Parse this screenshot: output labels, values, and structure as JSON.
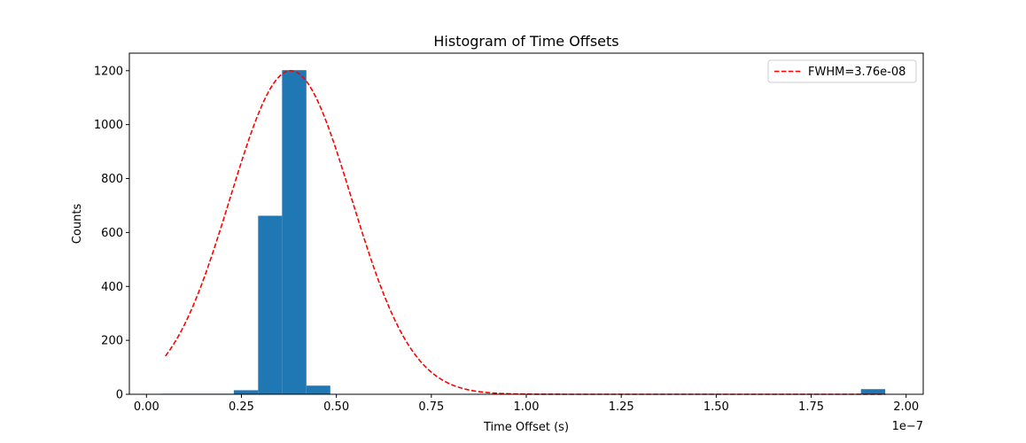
{
  "chart_data": {
    "type": "bar",
    "title": "Histogram of Time Offsets",
    "xlabel": "Time Offset (s)",
    "ylabel": "Counts",
    "x_scale_label": "1e−7",
    "xlim": [
      -0.045,
      2.045
    ],
    "ylim": [
      0,
      1265
    ],
    "x_ticks": [
      0.0,
      0.25,
      0.5,
      0.75,
      1.0,
      1.25,
      1.5,
      1.75,
      2.0
    ],
    "x_tick_labels": [
      "0.00",
      "0.25",
      "0.50",
      "0.75",
      "1.00",
      "1.25",
      "1.50",
      "1.75",
      "2.00"
    ],
    "y_ticks": [
      0,
      200,
      400,
      600,
      800,
      1000,
      1200
    ],
    "y_tick_labels": [
      "0",
      "200",
      "400",
      "600",
      "800",
      "1000",
      "1200"
    ],
    "bin_edges": [
      0.04,
      0.103,
      0.167,
      0.23,
      0.294,
      0.357,
      0.421,
      0.484,
      0.548,
      0.611,
      0.675,
      0.738,
      0.802,
      0.865,
      0.929,
      0.992,
      1.056,
      1.119,
      1.183,
      1.246,
      1.31,
      1.373,
      1.437,
      1.5,
      1.564,
      1.627,
      1.691,
      1.754,
      1.818,
      1.881,
      1.945
    ],
    "counts": [
      2,
      2,
      2,
      15,
      662,
      1202,
      32,
      0,
      0,
      0,
      0,
      0,
      0,
      0,
      0,
      0,
      0,
      0,
      0,
      0,
      0,
      0,
      0,
      0,
      0,
      0,
      0,
      0,
      0,
      19
    ],
    "bar_color": "#1f77b4",
    "fit_curve": {
      "name": "FWHM=3.76e-08",
      "type": "gaussian",
      "amplitude": 1200,
      "center": 0.38,
      "fwhm": 0.376,
      "x_range": [
        0.05,
        1.945
      ],
      "color": "#ff0000",
      "style": "dashed"
    },
    "legend_position": "top-right",
    "grid": false
  }
}
